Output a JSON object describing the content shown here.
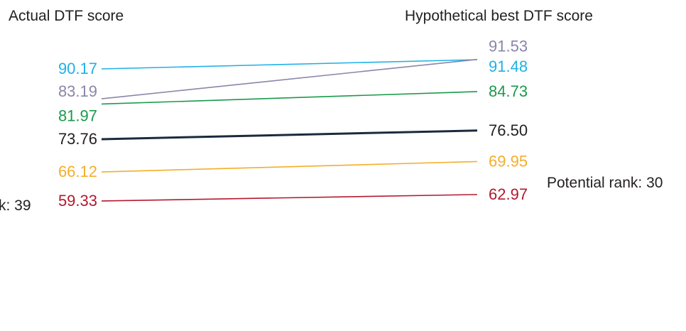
{
  "chart_data": {
    "type": "line",
    "left_header": "Actual DTF score",
    "right_header": "Hypothetical best DTF score",
    "left_annotation": "k: 39",
    "right_annotation": "Potential rank: 30",
    "series": [
      {
        "actual_label": "90.17",
        "best_label": "91.48",
        "actual": 90.17,
        "best": 91.48,
        "color": "#1fb1e6"
      },
      {
        "actual_label": "83.19",
        "best_label": "91.53",
        "actual": 83.19,
        "best": 91.53,
        "color": "#8a86a9"
      },
      {
        "actual_label": "81.97",
        "best_label": "84.73",
        "actual": 81.97,
        "best": 84.73,
        "color": "#1a9a4a"
      },
      {
        "actual_label": "73.76",
        "best_label": "76.50",
        "actual": 73.76,
        "best": 76.5,
        "color": "#1b2a3d",
        "highlight": true
      },
      {
        "actual_label": "66.12",
        "best_label": "69.95",
        "actual": 66.12,
        "best": 69.95,
        "color": "#f4ae2b"
      },
      {
        "actual_label": "59.33",
        "best_label": "62.97",
        "actual": 59.33,
        "best": 62.97,
        "color": "#b3192e"
      }
    ]
  }
}
